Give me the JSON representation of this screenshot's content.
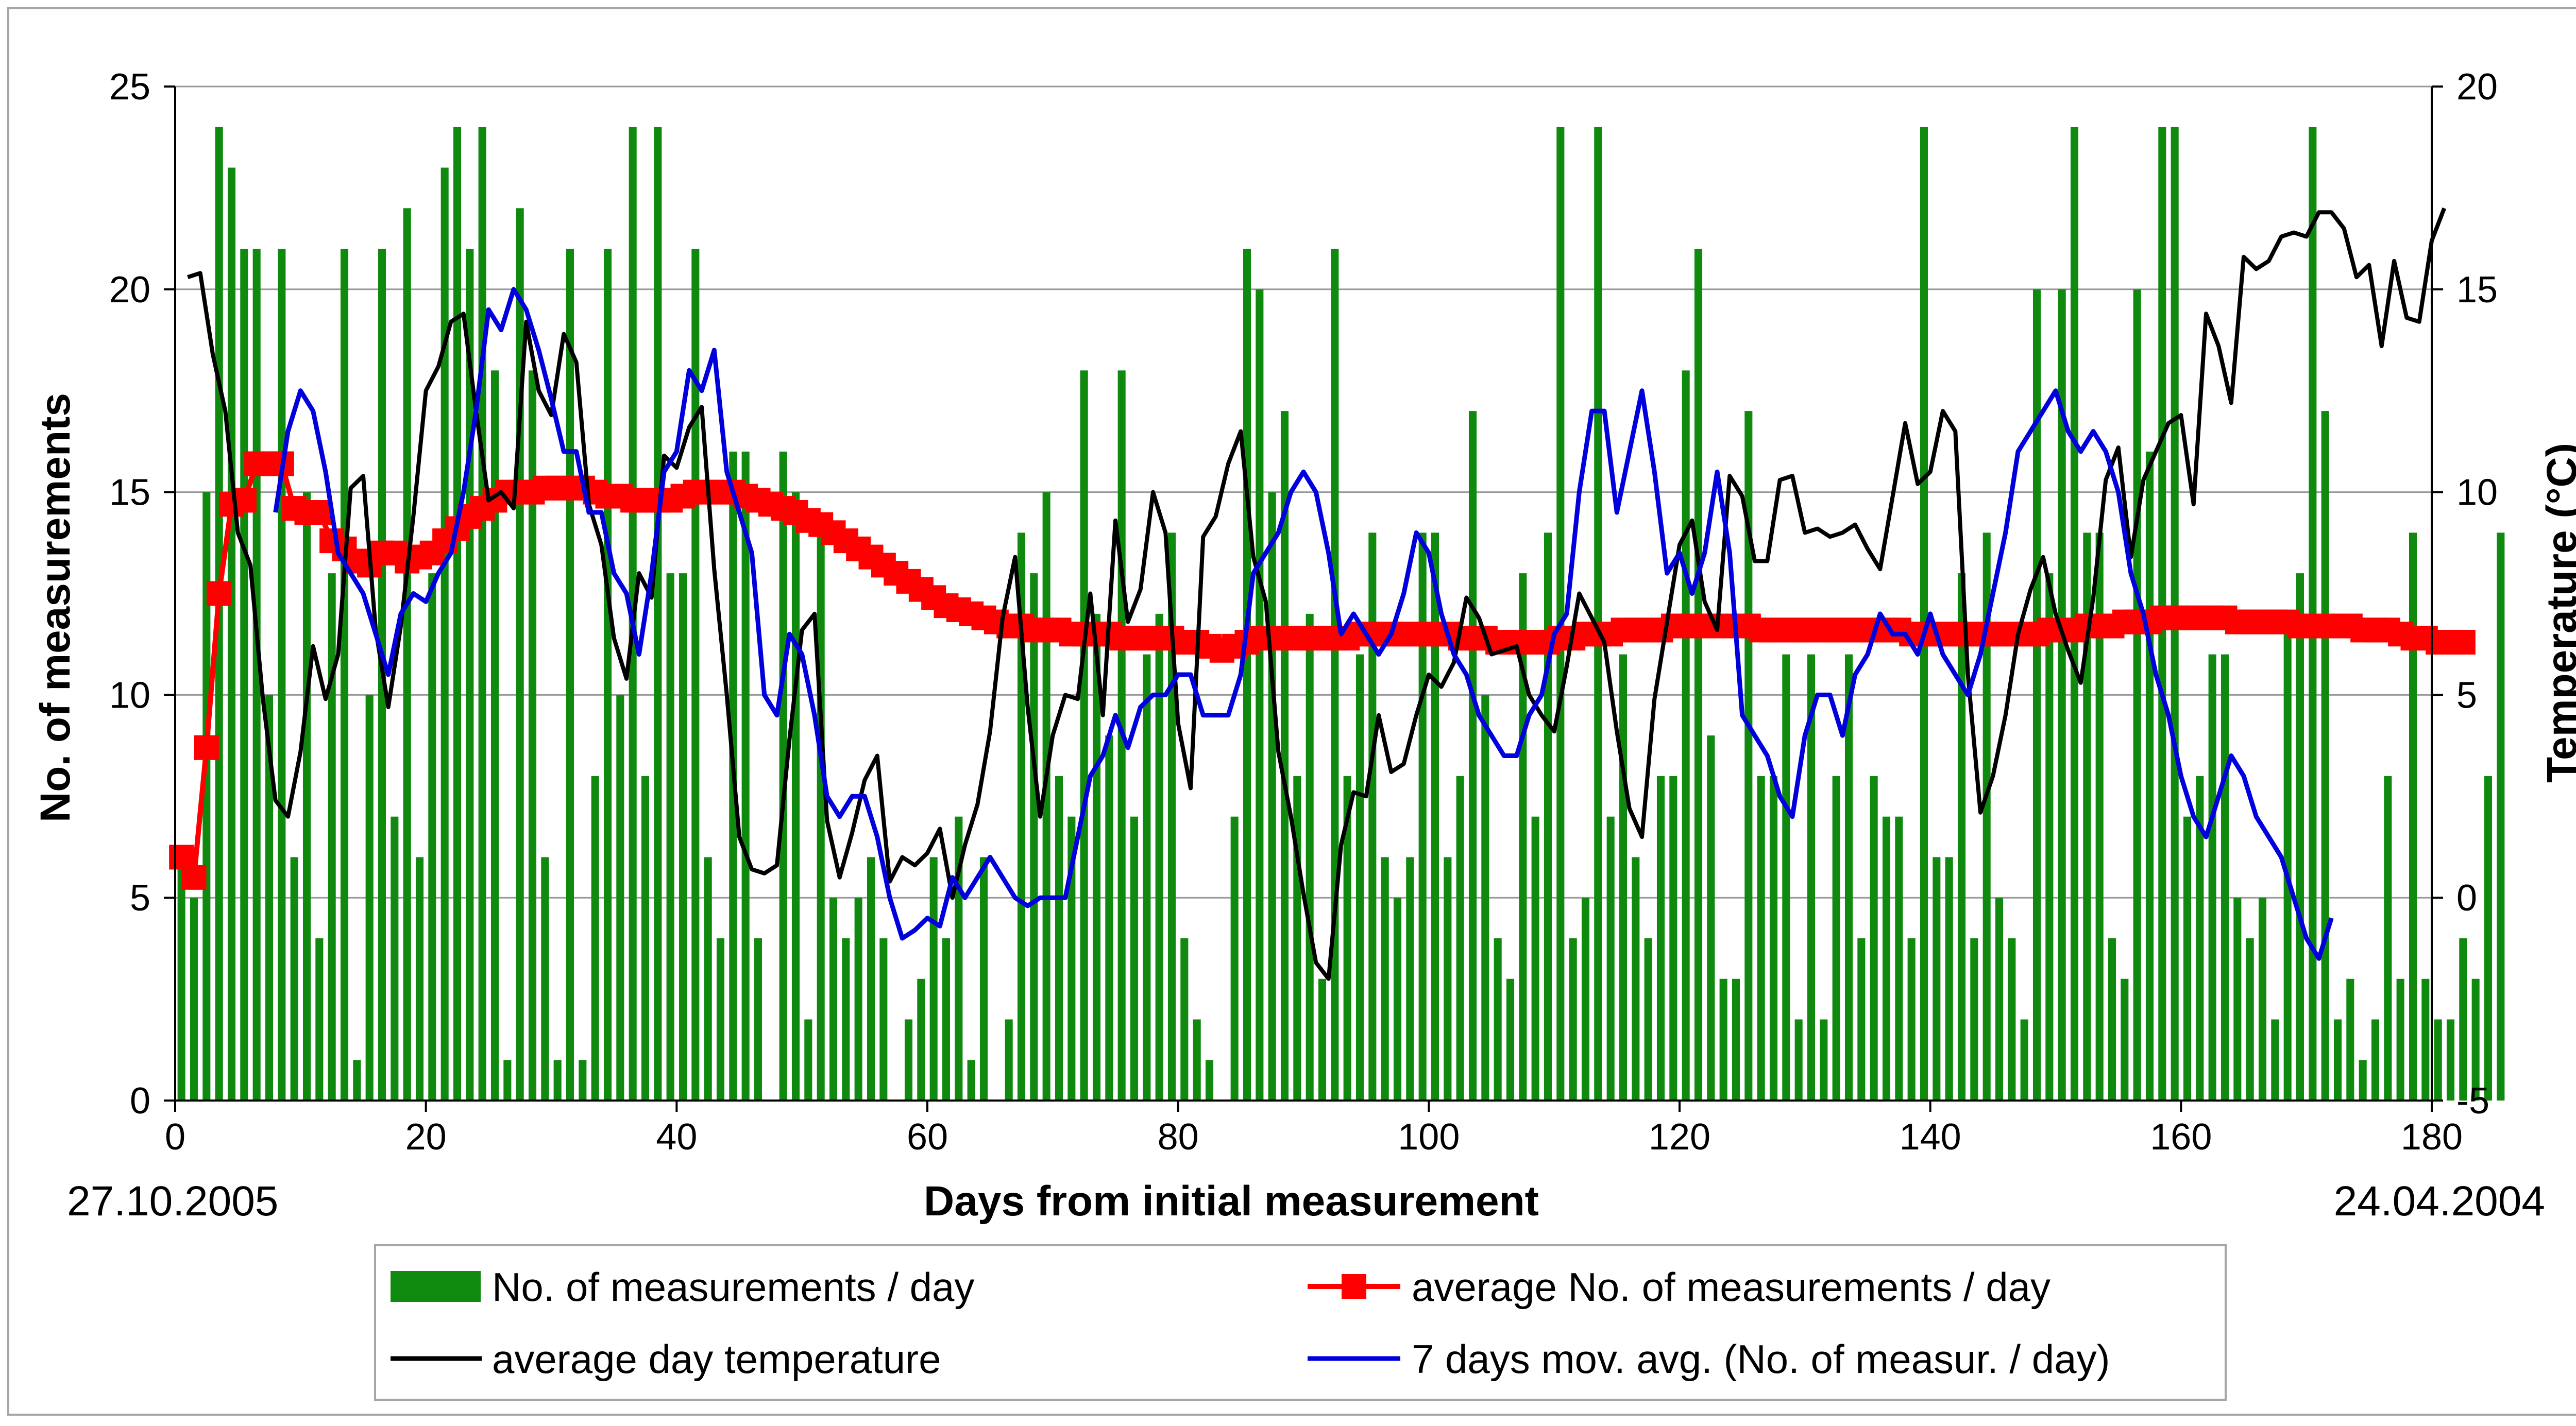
{
  "chart_data": {
    "type": "bar+line",
    "title": "",
    "xlabel": "Days from initial measurement",
    "ylabel": "No. of measurements",
    "y2label": "Temperature (°C)",
    "xlim": [
      0,
      180
    ],
    "ylim": [
      0,
      25
    ],
    "y2lim": [
      -5,
      20
    ],
    "x_ticks": [
      0,
      20,
      40,
      60,
      80,
      100,
      120,
      140,
      160,
      180
    ],
    "y_ticks": [
      0,
      5,
      10,
      15,
      20,
      25
    ],
    "y2_ticks": [
      -5,
      0,
      5,
      10,
      15,
      20
    ],
    "grid": "horizontal",
    "start_date": "27.10.2005",
    "end_date": "24.04.2004",
    "colors": {
      "bars": "#0f8a0f",
      "average": "#ff0000",
      "temperature": "#000000",
      "moving_average": "#0000dd",
      "grid": "#999999"
    },
    "legend": {
      "position": "bottom",
      "entries": [
        {
          "label": "No. of measurements / day",
          "series": "bars"
        },
        {
          "label": "average No. of measurements / day",
          "series": "average"
        },
        {
          "label": "average day temperature",
          "series": "temperature"
        },
        {
          "label": "7 days mov. avg. (No. of measur. / day)",
          "series": "moving_average"
        }
      ]
    },
    "series": [
      {
        "name": "No. of measurements / day",
        "type": "bar",
        "axis": "left",
        "x_start": 0,
        "values": [
          6,
          5,
          15,
          24,
          23,
          21,
          21,
          10,
          21,
          6,
          15,
          4,
          13,
          21,
          1,
          10,
          21,
          7,
          22,
          6,
          13,
          23,
          24,
          21,
          24,
          18,
          1,
          22,
          18,
          6,
          1,
          21,
          1,
          8,
          21,
          10,
          24,
          8,
          24,
          13,
          13,
          21,
          6,
          4,
          16,
          16,
          4,
          0,
          16,
          15,
          2,
          14,
          5,
          4,
          5,
          6,
          4,
          0,
          2,
          3,
          6,
          4,
          7,
          1,
          6,
          0,
          2,
          14,
          13,
          15,
          8,
          7,
          18,
          12,
          9,
          18,
          7,
          11,
          12,
          14,
          4,
          2,
          1,
          0,
          7,
          21,
          20,
          15,
          17,
          8,
          12,
          3,
          21,
          8,
          11,
          14,
          6,
          5,
          6,
          14,
          14,
          6,
          8,
          17,
          10,
          4,
          3,
          13,
          7,
          14,
          24,
          4,
          5,
          24,
          7,
          11,
          6,
          4,
          8,
          8,
          18,
          21,
          9,
          3,
          3,
          17,
          8,
          8,
          11,
          2,
          11,
          2,
          8,
          11,
          4,
          8,
          7,
          7,
          4,
          24,
          6,
          6,
          13,
          4,
          14,
          5,
          4,
          2,
          20,
          13,
          20,
          24,
          14,
          14,
          4,
          3,
          20,
          16,
          24,
          24,
          7,
          8,
          11,
          11,
          5,
          4,
          5,
          2,
          12,
          13,
          24,
          17,
          2,
          3,
          1,
          2,
          8,
          3,
          14,
          3,
          2,
          2,
          4,
          3,
          8,
          14
        ]
      },
      {
        "name": "average No. of measurements / day",
        "type": "line",
        "marker": "square",
        "axis": "left",
        "x_start": 0,
        "values": [
          6.0,
          5.5,
          8.7,
          12.5,
          14.7,
          14.8,
          15.7,
          15.7,
          15.7,
          14.6,
          14.5,
          14.5,
          13.8,
          13.6,
          13.3,
          13.2,
          13.5,
          13.5,
          13.3,
          13.4,
          13.5,
          13.8,
          14.1,
          14.4,
          14.6,
          14.8,
          15.0,
          15.0,
          15.0,
          15.1,
          15.1,
          15.1,
          15.1,
          15.0,
          14.9,
          14.9,
          14.8,
          14.8,
          14.8,
          14.8,
          14.9,
          15.0,
          15.0,
          15.0,
          15.0,
          14.9,
          14.8,
          14.7,
          14.6,
          14.5,
          14.3,
          14.2,
          14.0,
          13.8,
          13.6,
          13.4,
          13.2,
          13.0,
          12.8,
          12.6,
          12.4,
          12.2,
          12.1,
          12.0,
          11.9,
          11.8,
          11.7,
          11.7,
          11.6,
          11.6,
          11.6,
          11.5,
          11.5,
          11.5,
          11.5,
          11.4,
          11.4,
          11.4,
          11.4,
          11.4,
          11.3,
          11.3,
          11.2,
          11.1,
          11.2,
          11.3,
          11.4,
          11.4,
          11.4,
          11.4,
          11.4,
          11.4,
          11.4,
          11.4,
          11.5,
          11.5,
          11.5,
          11.5,
          11.5,
          11.5,
          11.5,
          11.5,
          11.4,
          11.4,
          11.4,
          11.3,
          11.3,
          11.3,
          11.3,
          11.3,
          11.4,
          11.4,
          11.5,
          11.5,
          11.5,
          11.6,
          11.6,
          11.6,
          11.6,
          11.7,
          11.7,
          11.7,
          11.7,
          11.7,
          11.7,
          11.7,
          11.6,
          11.6,
          11.6,
          11.6,
          11.6,
          11.6,
          11.6,
          11.6,
          11.6,
          11.6,
          11.6,
          11.6,
          11.5,
          11.5,
          11.5,
          11.5,
          11.5,
          11.5,
          11.5,
          11.5,
          11.5,
          11.5,
          11.5,
          11.6,
          11.6,
          11.6,
          11.7,
          11.7,
          11.7,
          11.8,
          11.8,
          11.8,
          11.9,
          11.9,
          11.9,
          11.9,
          11.9,
          11.9,
          11.8,
          11.8,
          11.8,
          11.8,
          11.8,
          11.7,
          11.7,
          11.7,
          11.7,
          11.7,
          11.6,
          11.6,
          11.6,
          11.5,
          11.4,
          11.4,
          11.3,
          11.3,
          11.3
        ]
      },
      {
        "name": "average day temperature",
        "type": "line",
        "axis": "right",
        "x_start": 0.5,
        "values": [
          15.3,
          15.4,
          13.4,
          12.0,
          9.0,
          8.2,
          4.9,
          2.4,
          2.0,
          3.6,
          6.2,
          4.9,
          6.0,
          10.1,
          10.4,
          6.6,
          4.7,
          6.7,
          9.4,
          12.5,
          13.1,
          14.2,
          14.4,
          12.0,
          9.8,
          10.0,
          9.6,
          14.2,
          12.5,
          11.9,
          13.9,
          13.2,
          9.7,
          8.7,
          6.4,
          5.4,
          8.0,
          7.4,
          10.9,
          10.6,
          11.6,
          12.1,
          8.1,
          5.0,
          1.5,
          0.7,
          0.6,
          0.8,
          3.9,
          6.6,
          7.0,
          1.9,
          0.5,
          1.6,
          2.9,
          3.5,
          0.4,
          1.0,
          0.8,
          1.1,
          1.7,
          0.0,
          1.3,
          2.3,
          4.1,
          6.9,
          8.4,
          4.7,
          2.0,
          4.0,
          5.0,
          4.9,
          7.5,
          4.5,
          9.3,
          6.8,
          7.6,
          10.0,
          9.0,
          4.3,
          2.7,
          8.9,
          9.4,
          10.7,
          11.5,
          8.4,
          7.3,
          3.6,
          2.0,
          0.1,
          -1.6,
          -2.0,
          1.3,
          2.6,
          2.5,
          4.5,
          3.1,
          3.3,
          4.5,
          5.5,
          5.2,
          5.8,
          7.4,
          6.9,
          6.0,
          6.1,
          6.2,
          5.0,
          4.5,
          4.1,
          5.7,
          7.5,
          6.9,
          6.3,
          4.1,
          2.2,
          1.5,
          4.9,
          6.8,
          8.7,
          9.3,
          7.3,
          6.6,
          10.4,
          9.9,
          8.3,
          8.3,
          10.3,
          10.4,
          9.0,
          9.1,
          8.9,
          9.0,
          9.2,
          8.6,
          8.1,
          9.9,
          11.7,
          10.2,
          10.5,
          12.0,
          11.5,
          5.5,
          2.1,
          3.0,
          4.5,
          6.5,
          7.6,
          8.4,
          7.0,
          6.1,
          5.3,
          7.4,
          10.3,
          11.1,
          8.4,
          10.3,
          11.0,
          11.7,
          11.9,
          9.7,
          14.4,
          13.6,
          12.2,
          15.8,
          15.5,
          15.7,
          16.3,
          16.4,
          16.3,
          16.9,
          16.9,
          16.5,
          15.3,
          15.6,
          13.6,
          15.7,
          14.3,
          14.2,
          16.2,
          17.0
        ]
      },
      {
        "name": "7 days mov. avg. (No. of measur. / day)",
        "type": "line",
        "axis": "left",
        "x_start": 0.5,
        "values": [
          null,
          null,
          null,
          null,
          null,
          null,
          null,
          14.5,
          16.5,
          17.5,
          17.0,
          15.5,
          13.5,
          13.0,
          12.5,
          11.5,
          10.5,
          12.0,
          12.5,
          12.3,
          13.0,
          13.5,
          15.0,
          17.0,
          19.5,
          19.0,
          20.0,
          19.5,
          18.5,
          17.3,
          16.0,
          16.0,
          14.5,
          14.5,
          13.0,
          12.5,
          11.0,
          13.0,
          15.5,
          16.0,
          18.0,
          17.5,
          18.5,
          15.5,
          14.5,
          13.5,
          10.0,
          9.5,
          11.5,
          11.0,
          9.5,
          7.5,
          7.0,
          7.5,
          7.5,
          6.5,
          5.0,
          4.0,
          4.2,
          4.5,
          4.3,
          5.5,
          5.0,
          5.5,
          6.0,
          5.5,
          5.0,
          4.8,
          5.0,
          5.0,
          5.0,
          6.5,
          8.0,
          8.5,
          9.5,
          8.7,
          9.7,
          10.0,
          10.0,
          10.5,
          10.5,
          9.5,
          9.5,
          9.5,
          10.5,
          13.0,
          13.5,
          14.0,
          15.0,
          15.5,
          15.0,
          13.5,
          11.5,
          12.0,
          11.5,
          11.0,
          11.5,
          12.5,
          14.0,
          13.5,
          12.0,
          11.0,
          10.5,
          9.5,
          9.0,
          8.5,
          8.5,
          9.5,
          10.0,
          11.5,
          12.0,
          15.0,
          17.0,
          17.0,
          14.5,
          16.0,
          17.5,
          15.5,
          13.0,
          13.5,
          12.5,
          13.5,
          15.5,
          13.5,
          9.5,
          9.0,
          8.5,
          7.5,
          7.0,
          9.0,
          10.0,
          10.0,
          9.0,
          10.5,
          11.0,
          12.0,
          11.5,
          11.5,
          11.0,
          12.0,
          11.0,
          10.5,
          10.0,
          11.0,
          12.5,
          14.0,
          16.0,
          16.5,
          17.0,
          17.5,
          16.5,
          16.0,
          16.5,
          16.0,
          15.0,
          13.0,
          12.0,
          10.5,
          9.5,
          8.0,
          7.0,
          6.5,
          7.5,
          8.5,
          8.0,
          7.0,
          6.5,
          6.0,
          5.0,
          4.0,
          3.5,
          4.5
        ]
      }
    ]
  }
}
